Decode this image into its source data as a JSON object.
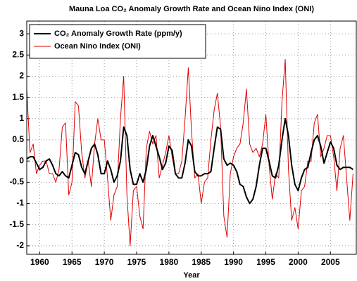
{
  "chart_data": {
    "type": "line",
    "title": "Mauna Loa CO₂ Anomaly Growth Rate and Ocean Nino Index (ONI)",
    "xlabel": "Year",
    "x": [
      1958,
      1958.5,
      1959,
      1959.5,
      1960,
      1960.5,
      1961,
      1961.5,
      1962,
      1962.5,
      1963,
      1963.5,
      1964,
      1964.5,
      1965,
      1965.5,
      1966,
      1966.5,
      1967,
      1967.5,
      1968,
      1968.5,
      1969,
      1969.5,
      1970,
      1970.5,
      1971,
      1971.5,
      1972,
      1972.5,
      1973,
      1973.5,
      1974,
      1974.5,
      1975,
      1975.5,
      1976,
      1976.5,
      1977,
      1977.5,
      1978,
      1978.5,
      1979,
      1979.5,
      1980,
      1980.5,
      1981,
      1981.5,
      1982,
      1982.5,
      1983,
      1983.5,
      1984,
      1984.5,
      1985,
      1985.5,
      1986,
      1986.5,
      1987,
      1987.5,
      1988,
      1988.5,
      1989,
      1989.5,
      1990,
      1990.5,
      1991,
      1991.5,
      1992,
      1992.5,
      1993,
      1993.5,
      1994,
      1994.5,
      1995,
      1995.5,
      1996,
      1996.5,
      1997,
      1997.5,
      1998,
      1998.5,
      1999,
      1999.5,
      2000,
      2000.5,
      2001,
      2001.5,
      2002,
      2002.5,
      2003,
      2003.5,
      2004,
      2004.5,
      2005,
      2005.5,
      2006,
      2006.5,
      2007,
      2007.5,
      2008,
      2008.5
    ],
    "series": [
      {
        "name": "CO₂ Anomaly Growth Rate (ppm/y)",
        "color": "#000000",
        "width": 2,
        "values": [
          0.05,
          0.1,
          0.1,
          -0.05,
          -0.2,
          -0.15,
          0.0,
          0.05,
          -0.1,
          -0.3,
          -0.35,
          -0.25,
          -0.35,
          -0.4,
          -0.1,
          0.2,
          0.15,
          -0.15,
          -0.3,
          0.0,
          0.3,
          0.4,
          0.15,
          -0.3,
          -0.3,
          0.0,
          -0.2,
          -0.5,
          -0.35,
          0.0,
          0.8,
          0.6,
          -0.2,
          -0.55,
          -0.55,
          -0.3,
          -0.5,
          -0.2,
          0.35,
          0.6,
          0.35,
          0.1,
          -0.2,
          -0.05,
          0.35,
          0.25,
          -0.3,
          -0.4,
          -0.4,
          -0.05,
          0.5,
          0.35,
          -0.25,
          -0.35,
          -0.35,
          -0.3,
          -0.3,
          -0.25,
          0.3,
          0.8,
          0.75,
          0.05,
          -0.1,
          -0.05,
          -0.1,
          -0.25,
          -0.55,
          -0.6,
          -0.85,
          -1.0,
          -0.9,
          -0.6,
          -0.1,
          0.3,
          0.3,
          0.0,
          -0.35,
          -0.4,
          -0.1,
          0.5,
          1.0,
          0.6,
          -0.1,
          -0.55,
          -0.7,
          -0.4,
          -0.2,
          -0.15,
          0.2,
          0.5,
          0.6,
          0.35,
          -0.05,
          0.2,
          0.45,
          0.3,
          -0.1,
          -0.2,
          -0.15,
          -0.15,
          -0.15,
          -0.2
        ]
      },
      {
        "name": "Ocean Nino Index (ONI)",
        "color": "#e00000",
        "width": 1,
        "values": [
          1.7,
          0.2,
          0.4,
          -0.3,
          -0.1,
          0.0,
          0.0,
          -0.3,
          -0.3,
          -0.5,
          -0.2,
          0.8,
          0.9,
          -0.8,
          -0.5,
          1.4,
          1.3,
          0.2,
          -0.4,
          0.0,
          -0.6,
          0.4,
          1.0,
          0.5,
          0.5,
          -0.4,
          -1.4,
          -0.8,
          -0.6,
          1.0,
          2.0,
          -0.8,
          -2.0,
          -0.7,
          -0.6,
          -1.3,
          -1.6,
          0.3,
          0.7,
          0.4,
          0.6,
          -0.4,
          -0.1,
          0.2,
          0.6,
          0.1,
          -0.3,
          -0.3,
          0.0,
          1.0,
          2.2,
          0.7,
          -0.4,
          -0.3,
          -1.0,
          -0.5,
          -0.4,
          0.5,
          1.2,
          1.6,
          0.8,
          -1.3,
          -1.8,
          -0.3,
          0.1,
          0.3,
          0.4,
          0.9,
          1.7,
          0.4,
          0.2,
          0.3,
          0.1,
          0.4,
          1.1,
          -0.1,
          -0.9,
          -0.3,
          -0.4,
          1.4,
          2.4,
          -0.2,
          -1.4,
          -1.1,
          -1.6,
          -0.7,
          -0.6,
          0.0,
          0.0,
          0.9,
          1.1,
          0.1,
          0.3,
          0.6,
          0.6,
          0.1,
          -0.7,
          0.3,
          0.6,
          -0.4,
          -1.4,
          -0.3
        ]
      }
    ],
    "xlim": [
      1958,
      2009
    ],
    "xticks": [
      1960,
      1965,
      1970,
      1975,
      1980,
      1985,
      1990,
      1995,
      2000,
      2005
    ],
    "ylim": [
      -2.2,
      3.3
    ],
    "yticks": [
      -2,
      -1.5,
      -1,
      -0.5,
      0,
      0.5,
      1,
      1.5,
      2,
      2.5,
      3
    ],
    "grid": true,
    "legend": "upper left"
  }
}
